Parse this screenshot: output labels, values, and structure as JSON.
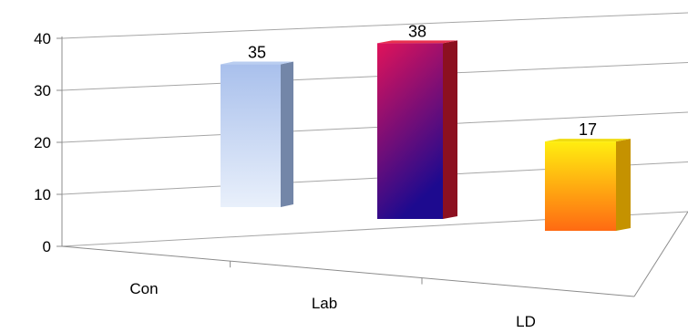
{
  "chart_data": {
    "type": "bar",
    "title": "",
    "xlabel": "",
    "ylabel": "",
    "categories": [
      "Con",
      "Lab",
      "LD"
    ],
    "values": [
      35,
      38,
      17
    ],
    "ylim": [
      0,
      40
    ],
    "yticks": [
      "0",
      "10",
      "20",
      "30",
      "40"
    ],
    "grid": true,
    "legend": "none",
    "bar_style": "3d",
    "colors": {
      "Con": {
        "front_top": "#a9c0ec",
        "front_bottom": "#e9f0fb",
        "side": "#7386a8",
        "top": "#b9cdf0"
      },
      "Lab": {
        "front_top": "#e0135a",
        "front_bottom": "#1d0a8f",
        "side": "#8c1020",
        "top": "#e8314f"
      },
      "LD": {
        "front_top": "#ffee10",
        "front_bottom": "#ff6a12",
        "side": "#c59200",
        "top": "#f0dc10"
      }
    }
  }
}
